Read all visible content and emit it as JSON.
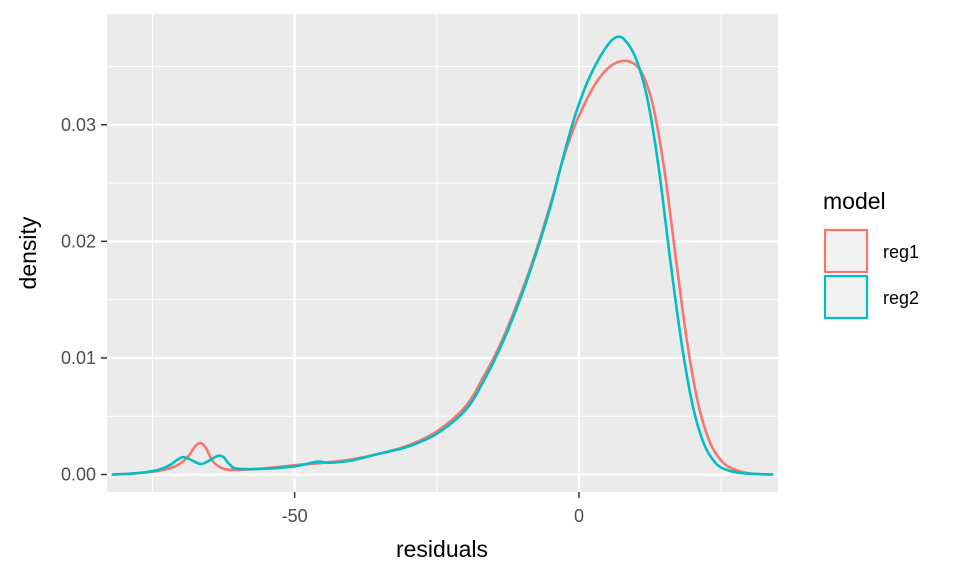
{
  "chart_data": {
    "type": "line",
    "xlabel": "residuals",
    "ylabel": "density",
    "xlim": [
      -83,
      35
    ],
    "ylim": [
      -0.0015,
      0.0395
    ],
    "x_ticks": [
      -50,
      0
    ],
    "x_tick_labels": [
      "-50",
      "0"
    ],
    "y_ticks": [
      0.0,
      0.01,
      0.02,
      0.03
    ],
    "y_tick_labels": [
      "0.00",
      "0.01",
      "0.02",
      "0.03"
    ],
    "grid": true,
    "legend": {
      "title": "model",
      "position": "right"
    },
    "series": [
      {
        "name": "reg1",
        "color": "#F8766D",
        "points": [
          [
            -82,
            0.0
          ],
          [
            -78,
            0.0001
          ],
          [
            -74,
            0.0003
          ],
          [
            -71,
            0.0007
          ],
          [
            -69,
            0.0014
          ],
          [
            -67.5,
            0.0024
          ],
          [
            -66.5,
            0.0027
          ],
          [
            -65.5,
            0.0022
          ],
          [
            -64.5,
            0.0012
          ],
          [
            -63,
            0.0006
          ],
          [
            -61,
            0.0004
          ],
          [
            -56,
            0.0005
          ],
          [
            -50,
            0.0008
          ],
          [
            -45,
            0.001
          ],
          [
            -40,
            0.0013
          ],
          [
            -35,
            0.0018
          ],
          [
            -30,
            0.0025
          ],
          [
            -25,
            0.0037
          ],
          [
            -20,
            0.0058
          ],
          [
            -17,
            0.0082
          ],
          [
            -14,
            0.011
          ],
          [
            -11,
            0.0145
          ],
          [
            -8,
            0.0185
          ],
          [
            -5,
            0.0232
          ],
          [
            -3,
            0.0267
          ],
          [
            -1,
            0.0296
          ],
          [
            1,
            0.0318
          ],
          [
            3,
            0.0336
          ],
          [
            5,
            0.0348
          ],
          [
            7,
            0.0354
          ],
          [
            9,
            0.0354
          ],
          [
            11,
            0.0345
          ],
          [
            13,
            0.0317
          ],
          [
            15,
            0.0262
          ],
          [
            17,
            0.0187
          ],
          [
            19,
            0.0114
          ],
          [
            21,
            0.006
          ],
          [
            23,
            0.0028
          ],
          [
            25,
            0.0012
          ],
          [
            27,
            0.0005
          ],
          [
            30,
            0.0001
          ],
          [
            34,
            0.0
          ]
        ]
      },
      {
        "name": "reg2",
        "color": "#00BFC4",
        "points": [
          [
            -82,
            0.0
          ],
          [
            -78,
            0.0001
          ],
          [
            -74,
            0.0004
          ],
          [
            -72,
            0.0008
          ],
          [
            -70.5,
            0.0013
          ],
          [
            -69.5,
            0.0015
          ],
          [
            -68,
            0.0012
          ],
          [
            -66.5,
            0.0009
          ],
          [
            -65,
            0.0012
          ],
          [
            -63.5,
            0.0016
          ],
          [
            -62.5,
            0.0015
          ],
          [
            -61.5,
            0.0009
          ],
          [
            -60,
            0.0005
          ],
          [
            -55,
            0.0005
          ],
          [
            -50,
            0.0007
          ],
          [
            -46,
            0.0011
          ],
          [
            -44,
            0.001
          ],
          [
            -40,
            0.0012
          ],
          [
            -35,
            0.0018
          ],
          [
            -30,
            0.0024
          ],
          [
            -25,
            0.0035
          ],
          [
            -20,
            0.0055
          ],
          [
            -17,
            0.0078
          ],
          [
            -14,
            0.0107
          ],
          [
            -11,
            0.0142
          ],
          [
            -8,
            0.0183
          ],
          [
            -5,
            0.023
          ],
          [
            -3,
            0.0268
          ],
          [
            -1,
            0.0303
          ],
          [
            1,
            0.0331
          ],
          [
            3,
            0.0352
          ],
          [
            5,
            0.0368
          ],
          [
            6.5,
            0.0375
          ],
          [
            8,
            0.0373
          ],
          [
            10,
            0.0357
          ],
          [
            12,
            0.0323
          ],
          [
            14,
            0.0264
          ],
          [
            16,
            0.0186
          ],
          [
            18,
            0.0114
          ],
          [
            20,
            0.0059
          ],
          [
            22,
            0.0026
          ],
          [
            24,
            0.001
          ],
          [
            26,
            0.0004
          ],
          [
            29,
            0.0001
          ],
          [
            34,
            0.0
          ]
        ]
      }
    ]
  }
}
